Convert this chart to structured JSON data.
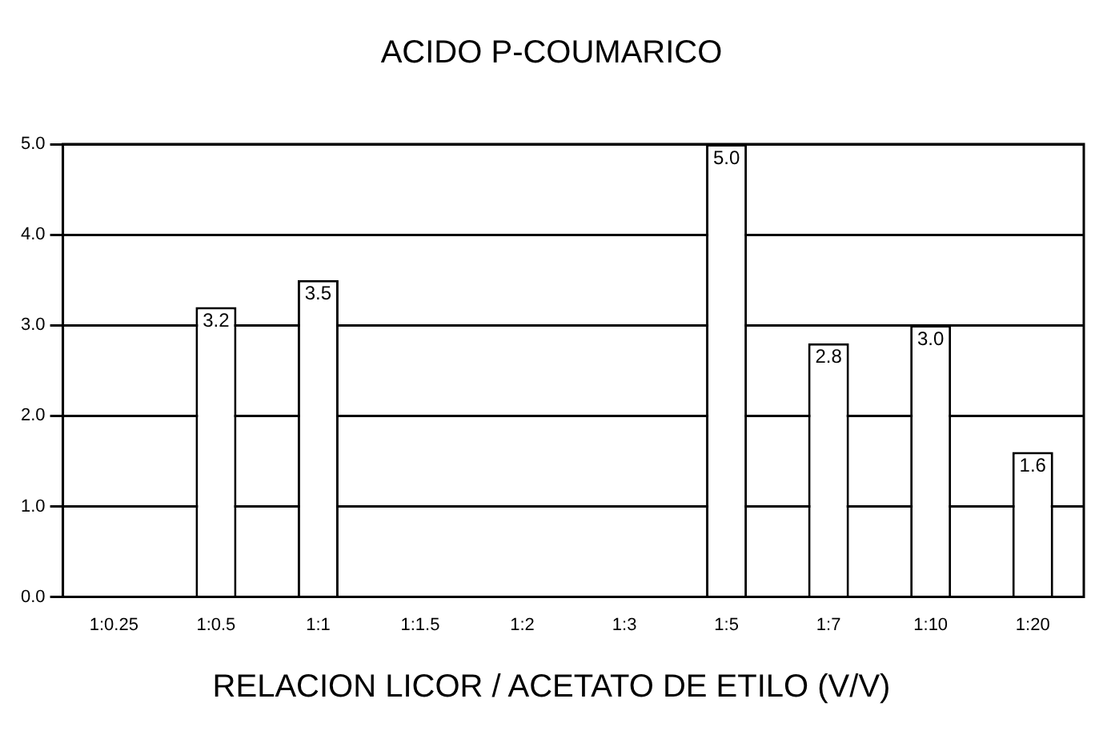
{
  "chart_data": {
    "type": "bar",
    "title": "ACIDO P-COUMARICO",
    "xlabel": "RELACION LICOR / ACETATO DE ETILO (V/V)",
    "categories": [
      "1:0.25",
      "1:0.5",
      "1:1",
      "1:1.5",
      "1:2",
      "1:3",
      "1:5",
      "1:7",
      "1:10",
      "1:20"
    ],
    "values": [
      null,
      3.2,
      3.5,
      null,
      null,
      null,
      5.0,
      2.8,
      3.0,
      1.6
    ],
    "value_labels": [
      null,
      "3.2",
      "3.5",
      null,
      null,
      null,
      "5.0",
      "2.8",
      "3.0",
      "1.6"
    ],
    "color": "#ffffff",
    "ylim": [
      0,
      5
    ],
    "yticks": [
      {
        "value": 0,
        "label": "0.0"
      },
      {
        "value": 1,
        "label": "1.0"
      },
      {
        "value": 2,
        "label": "2.0"
      },
      {
        "value": 3,
        "label": "3.0"
      },
      {
        "value": 4,
        "label": "4.0"
      },
      {
        "value": 5,
        "label": "5.0"
      }
    ],
    "grid": "y",
    "legend": false
  }
}
